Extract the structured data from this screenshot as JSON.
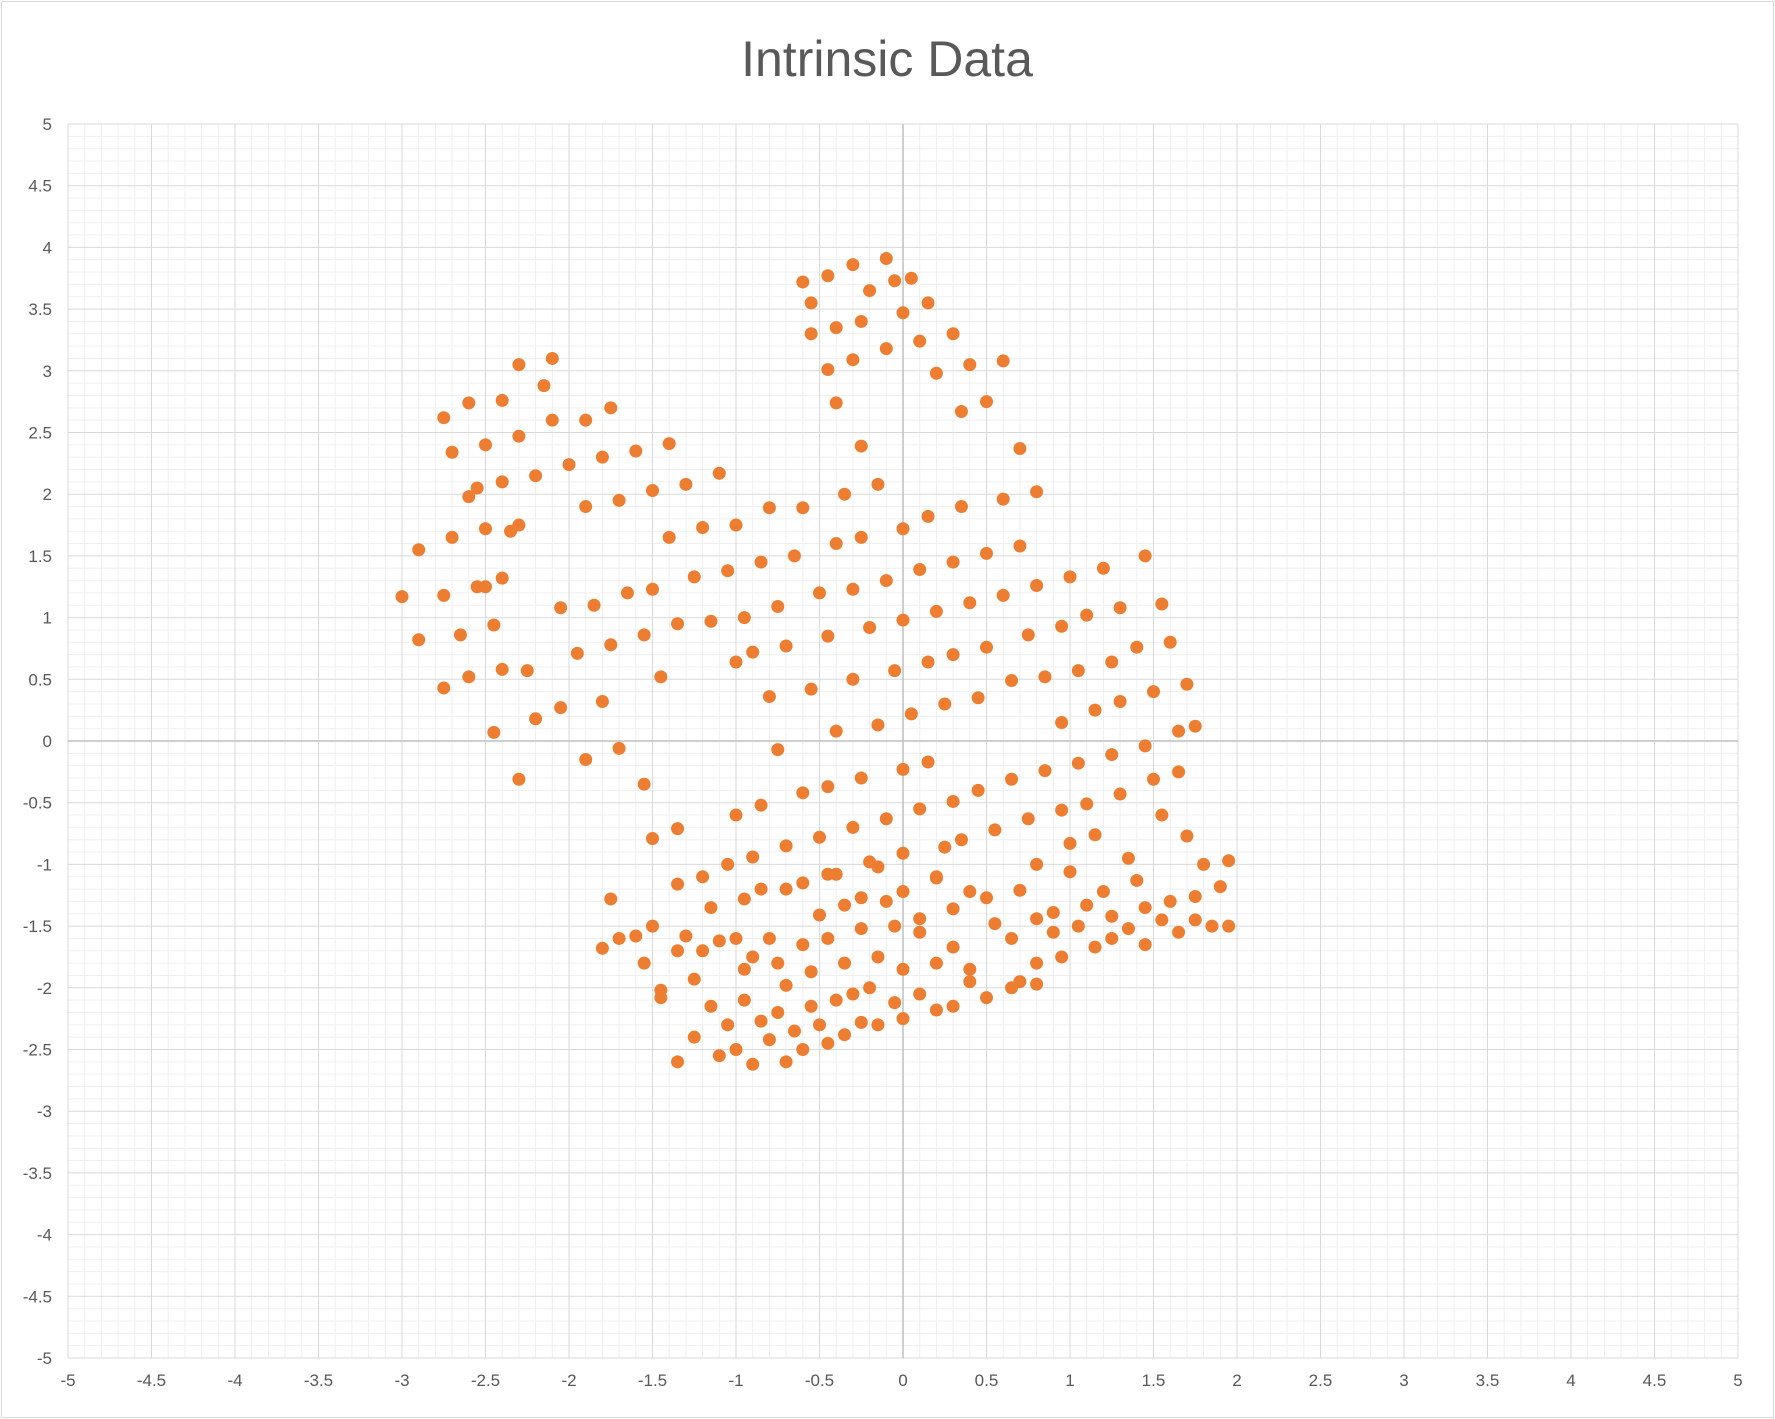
{
  "chart_data": {
    "type": "scatter",
    "title": "Intrinsic Data",
    "xlabel": "",
    "ylabel": "",
    "xlim": [
      -5,
      5
    ],
    "ylim": [
      -5,
      5
    ],
    "major_step": 0.5,
    "minor_step": 0.1,
    "grid": true,
    "legend": "none",
    "x_tick_labels": [
      "-5",
      "-4.5",
      "-4",
      "-3.5",
      "-3",
      "-2.5",
      "-2",
      "-1.5",
      "-1",
      "-0.5",
      "0",
      "0.5",
      "1",
      "1.5",
      "2",
      "2.5",
      "3",
      "3.5",
      "4",
      "4.5",
      "5"
    ],
    "y_tick_labels": [
      "5",
      "4.5",
      "4",
      "3.5",
      "3",
      "2.5",
      "2",
      "1.5",
      "1",
      "0.5",
      "0",
      "-0.5",
      "-1",
      "-1.5",
      "-2",
      "-2.5",
      "-3",
      "-3.5",
      "-4",
      "-4.5",
      "-5"
    ],
    "colors": {
      "points": "#ED7D31",
      "major_grid": "#d9d9d9",
      "minor_grid": "#efefef",
      "axis": "#bfbfbf"
    },
    "series": [
      {
        "points": [
          [
            -3.0,
            1.17
          ],
          [
            -2.9,
            1.55
          ],
          [
            -2.9,
            0.82
          ],
          [
            -2.75,
            2.62
          ],
          [
            -2.75,
            1.18
          ],
          [
            -2.75,
            0.43
          ],
          [
            -2.7,
            2.34
          ],
          [
            -2.7,
            1.65
          ],
          [
            -2.65,
            0.86
          ],
          [
            -2.6,
            2.74
          ],
          [
            -2.6,
            1.98
          ],
          [
            -2.6,
            0.52
          ],
          [
            -2.55,
            2.05
          ],
          [
            -2.55,
            1.25
          ],
          [
            -2.5,
            2.4
          ],
          [
            -2.5,
            1.72
          ],
          [
            -2.5,
            1.25
          ],
          [
            -2.45,
            0.94
          ],
          [
            -2.45,
            0.07
          ],
          [
            -2.4,
            2.76
          ],
          [
            -2.4,
            2.1
          ],
          [
            -2.4,
            1.32
          ],
          [
            -2.4,
            0.58
          ],
          [
            -2.35,
            1.7
          ],
          [
            -2.3,
            3.05
          ],
          [
            -2.3,
            2.47
          ],
          [
            -2.3,
            1.75
          ],
          [
            -2.3,
            -0.31
          ],
          [
            -2.25,
            0.57
          ],
          [
            -2.2,
            2.15
          ],
          [
            -2.2,
            0.18
          ],
          [
            -2.15,
            2.88
          ],
          [
            -2.1,
            2.6
          ],
          [
            -2.1,
            3.1
          ],
          [
            -2.05,
            1.08
          ],
          [
            -2.05,
            0.27
          ],
          [
            -2.0,
            2.24
          ],
          [
            -1.95,
            0.71
          ],
          [
            -1.9,
            2.6
          ],
          [
            -1.9,
            1.9
          ],
          [
            -1.9,
            -0.15
          ],
          [
            -1.85,
            1.1
          ],
          [
            -1.8,
            2.3
          ],
          [
            -1.8,
            0.32
          ],
          [
            -1.75,
            2.7
          ],
          [
            -1.75,
            0.78
          ],
          [
            -1.7,
            1.95
          ],
          [
            -1.7,
            -0.06
          ],
          [
            -1.65,
            1.2
          ],
          [
            -1.6,
            2.35
          ],
          [
            -1.55,
            0.86
          ],
          [
            -1.55,
            -0.35
          ],
          [
            -1.5,
            2.03
          ],
          [
            -1.5,
            1.23
          ],
          [
            -1.45,
            0.52
          ],
          [
            -1.4,
            2.41
          ],
          [
            -1.4,
            1.65
          ],
          [
            -1.35,
            0.95
          ],
          [
            -1.35,
            -0.71
          ],
          [
            -1.3,
            2.08
          ],
          [
            -1.25,
            1.33
          ],
          [
            -1.2,
            1.73
          ],
          [
            -1.15,
            0.97
          ],
          [
            -1.1,
            2.17
          ],
          [
            -1.05,
            1.38
          ],
          [
            -1.0,
            0.64
          ],
          [
            -1.0,
            1.75
          ],
          [
            -0.95,
            1.0
          ],
          [
            -0.9,
            0.72
          ],
          [
            -0.85,
            1.45
          ],
          [
            -0.8,
            1.89
          ],
          [
            -0.8,
            0.36
          ],
          [
            -0.75,
            1.09
          ],
          [
            -0.75,
            -0.07
          ],
          [
            -0.7,
            0.77
          ],
          [
            -0.65,
            1.5
          ],
          [
            -0.6,
            1.89
          ],
          [
            -0.55,
            0.42
          ],
          [
            -0.5,
            1.2
          ],
          [
            -0.45,
            0.85
          ],
          [
            -0.4,
            1.6
          ],
          [
            -0.4,
            0.08
          ],
          [
            -0.35,
            2.0
          ],
          [
            -0.3,
            1.23
          ],
          [
            -0.3,
            0.5
          ],
          [
            -0.25,
            1.65
          ],
          [
            -0.2,
            0.92
          ],
          [
            -0.15,
            2.08
          ],
          [
            -0.15,
            0.13
          ],
          [
            -0.1,
            1.3
          ],
          [
            -0.05,
            0.57
          ],
          [
            0.0,
            1.72
          ],
          [
            0.0,
            0.98
          ],
          [
            0.05,
            0.22
          ],
          [
            0.1,
            1.39
          ],
          [
            0.15,
            0.64
          ],
          [
            0.15,
            1.82
          ],
          [
            0.2,
            1.05
          ],
          [
            0.25,
            0.3
          ],
          [
            0.3,
            1.45
          ],
          [
            0.3,
            0.7
          ],
          [
            0.35,
            1.9
          ],
          [
            0.4,
            1.12
          ],
          [
            0.45,
            0.35
          ],
          [
            0.5,
            1.52
          ],
          [
            0.5,
            0.76
          ],
          [
            0.6,
            1.96
          ],
          [
            0.6,
            1.18
          ],
          [
            0.65,
            0.49
          ],
          [
            0.7,
            1.58
          ],
          [
            0.75,
            0.86
          ],
          [
            0.8,
            2.02
          ],
          [
            0.8,
            1.26
          ],
          [
            0.85,
            0.52
          ],
          [
            0.95,
            0.93
          ],
          [
            0.95,
            0.15
          ],
          [
            1.0,
            1.33
          ],
          [
            1.05,
            0.57
          ],
          [
            1.1,
            1.02
          ],
          [
            1.15,
            0.25
          ],
          [
            1.2,
            1.4
          ],
          [
            1.25,
            0.64
          ],
          [
            1.3,
            1.08
          ],
          [
            1.3,
            0.32
          ],
          [
            1.4,
            0.76
          ],
          [
            1.45,
            1.5
          ],
          [
            1.5,
            0.4
          ],
          [
            1.55,
            1.11
          ],
          [
            1.6,
            0.8
          ],
          [
            1.65,
            0.08
          ],
          [
            1.7,
            0.46
          ],
          [
            1.75,
            0.12
          ],
          [
            -0.6,
            3.72
          ],
          [
            -0.55,
            3.55
          ],
          [
            -0.45,
            3.77
          ],
          [
            -0.4,
            3.35
          ],
          [
            -0.3,
            3.86
          ],
          [
            -0.25,
            3.4
          ],
          [
            -0.2,
            3.65
          ],
          [
            -0.1,
            3.91
          ],
          [
            -0.05,
            3.73
          ],
          [
            0.0,
            3.47
          ],
          [
            0.05,
            3.75
          ],
          [
            0.1,
            3.24
          ],
          [
            0.15,
            3.55
          ],
          [
            0.2,
            2.98
          ],
          [
            0.3,
            3.3
          ],
          [
            0.35,
            2.67
          ],
          [
            0.4,
            3.05
          ],
          [
            0.5,
            2.75
          ],
          [
            0.6,
            3.08
          ],
          [
            0.7,
            2.37
          ],
          [
            -0.55,
            3.3
          ],
          [
            -0.45,
            3.01
          ],
          [
            -0.4,
            2.74
          ],
          [
            -0.3,
            3.09
          ],
          [
            -0.25,
            2.39
          ],
          [
            -0.1,
            3.18
          ],
          [
            -0.85,
            -0.52
          ],
          [
            -0.7,
            -0.85
          ],
          [
            -0.6,
            -0.42
          ],
          [
            -0.5,
            -0.78
          ],
          [
            -0.45,
            -0.37
          ],
          [
            -0.4,
            -1.08
          ],
          [
            -0.3,
            -0.7
          ],
          [
            -0.25,
            -0.3
          ],
          [
            -0.2,
            -0.98
          ],
          [
            -0.1,
            -0.63
          ],
          [
            0.0,
            -0.23
          ],
          [
            0.0,
            -0.91
          ],
          [
            0.1,
            -0.55
          ],
          [
            0.2,
            -1.1
          ],
          [
            0.15,
            -0.17
          ],
          [
            0.25,
            -0.86
          ],
          [
            0.3,
            -0.49
          ],
          [
            0.35,
            -0.8
          ],
          [
            0.45,
            -0.4
          ],
          [
            0.55,
            -0.72
          ],
          [
            0.65,
            -0.31
          ],
          [
            0.75,
            -0.63
          ],
          [
            0.8,
            -1.0
          ],
          [
            0.85,
            -0.24
          ],
          [
            0.95,
            -0.56
          ],
          [
            1.0,
            -0.83
          ],
          [
            1.05,
            -0.18
          ],
          [
            1.1,
            -0.51
          ],
          [
            1.15,
            -0.76
          ],
          [
            1.25,
            -0.11
          ],
          [
            1.3,
            -0.43
          ],
          [
            1.35,
            -0.95
          ],
          [
            1.45,
            -0.04
          ],
          [
            1.5,
            -0.31
          ],
          [
            1.55,
            -0.6
          ],
          [
            1.65,
            -0.25
          ],
          [
            1.7,
            -0.77
          ],
          [
            -1.5,
            -0.79
          ],
          [
            -1.35,
            -1.16
          ],
          [
            -1.2,
            -1.1
          ],
          [
            -1.05,
            -1.0
          ],
          [
            -1.0,
            -0.6
          ],
          [
            -0.95,
            -1.28
          ],
          [
            -0.9,
            -0.94
          ],
          [
            -0.85,
            -1.2
          ],
          [
            -0.7,
            -1.2
          ],
          [
            -0.6,
            -1.15
          ],
          [
            -0.5,
            -1.41
          ],
          [
            -0.45,
            -1.08
          ],
          [
            -0.35,
            -1.33
          ],
          [
            -0.25,
            -1.27
          ],
          [
            -0.15,
            -1.02
          ],
          [
            -0.1,
            -1.3
          ],
          [
            0.0,
            -1.22
          ],
          [
            0.1,
            -1.44
          ],
          [
            0.2,
            -1.11
          ],
          [
            0.3,
            -1.36
          ],
          [
            0.4,
            -1.22
          ],
          [
            0.5,
            -1.27
          ],
          [
            0.7,
            -1.21
          ],
          [
            0.8,
            -1.44
          ],
          [
            0.9,
            -1.39
          ],
          [
            1.0,
            -1.06
          ],
          [
            1.1,
            -1.33
          ],
          [
            1.2,
            -1.22
          ],
          [
            1.25,
            -1.42
          ],
          [
            1.4,
            -1.13
          ],
          [
            1.45,
            -1.35
          ],
          [
            1.6,
            -1.3
          ],
          [
            1.75,
            -1.26
          ],
          [
            1.8,
            -1.0
          ],
          [
            1.9,
            -1.18
          ],
          [
            1.95,
            -0.97
          ],
          [
            -1.75,
            -1.28
          ],
          [
            -1.7,
            -1.6
          ],
          [
            -1.8,
            -1.68
          ],
          [
            -1.6,
            -1.58
          ],
          [
            -1.5,
            -1.5
          ],
          [
            -1.55,
            -1.8
          ],
          [
            -1.45,
            -2.08
          ],
          [
            -1.35,
            -1.7
          ],
          [
            -1.3,
            -1.58
          ],
          [
            -1.25,
            -1.93
          ],
          [
            -1.2,
            -1.7
          ],
          [
            -1.15,
            -1.35
          ],
          [
            -1.1,
            -1.62
          ],
          [
            -1.0,
            -1.6
          ],
          [
            -0.95,
            -1.85
          ],
          [
            -0.9,
            -1.75
          ],
          [
            -0.8,
            -1.6
          ],
          [
            -0.75,
            -1.8
          ],
          [
            -0.7,
            -1.98
          ],
          [
            -0.6,
            -1.65
          ],
          [
            -0.55,
            -1.87
          ],
          [
            -0.45,
            -1.6
          ],
          [
            -0.35,
            -1.8
          ],
          [
            -0.25,
            -1.52
          ],
          [
            -0.15,
            -1.75
          ],
          [
            -0.05,
            -1.5
          ],
          [
            0.0,
            -1.85
          ],
          [
            0.1,
            -1.55
          ],
          [
            0.2,
            -1.8
          ],
          [
            0.3,
            -1.67
          ],
          [
            0.4,
            -1.85
          ],
          [
            0.55,
            -1.48
          ],
          [
            0.65,
            -1.6
          ],
          [
            0.7,
            -1.95
          ],
          [
            0.8,
            -1.8
          ],
          [
            0.9,
            -1.55
          ],
          [
            0.95,
            -1.75
          ],
          [
            1.05,
            -1.5
          ],
          [
            1.15,
            -1.67
          ],
          [
            1.25,
            -1.6
          ],
          [
            1.35,
            -1.52
          ],
          [
            1.45,
            -1.65
          ],
          [
            1.55,
            -1.45
          ],
          [
            1.65,
            -1.55
          ],
          [
            1.75,
            -1.45
          ],
          [
            1.85,
            -1.5
          ],
          [
            1.95,
            -1.5
          ],
          [
            -1.45,
            -2.02
          ],
          [
            -1.35,
            -2.6
          ],
          [
            -1.25,
            -2.4
          ],
          [
            -1.15,
            -2.15
          ],
          [
            -1.1,
            -2.55
          ],
          [
            -1.05,
            -2.3
          ],
          [
            -1.0,
            -2.5
          ],
          [
            -0.95,
            -2.1
          ],
          [
            -0.9,
            -2.62
          ],
          [
            -0.85,
            -2.27
          ],
          [
            -0.8,
            -2.42
          ],
          [
            -0.75,
            -2.2
          ],
          [
            -0.7,
            -2.6
          ],
          [
            -0.65,
            -2.35
          ],
          [
            -0.6,
            -2.5
          ],
          [
            -0.55,
            -2.15
          ],
          [
            -0.5,
            -2.3
          ],
          [
            -0.45,
            -2.45
          ],
          [
            -0.4,
            -2.1
          ],
          [
            -0.35,
            -2.38
          ],
          [
            -0.3,
            -2.05
          ],
          [
            -0.25,
            -2.28
          ],
          [
            -0.2,
            -2.0
          ],
          [
            -0.15,
            -2.3
          ],
          [
            -0.05,
            -2.12
          ],
          [
            0.0,
            -2.25
          ],
          [
            0.1,
            -2.05
          ],
          [
            0.2,
            -2.18
          ],
          [
            0.3,
            -2.15
          ],
          [
            0.4,
            -1.95
          ],
          [
            0.5,
            -2.08
          ],
          [
            0.65,
            -2.0
          ],
          [
            0.8,
            -1.97
          ]
        ]
      }
    ]
  }
}
